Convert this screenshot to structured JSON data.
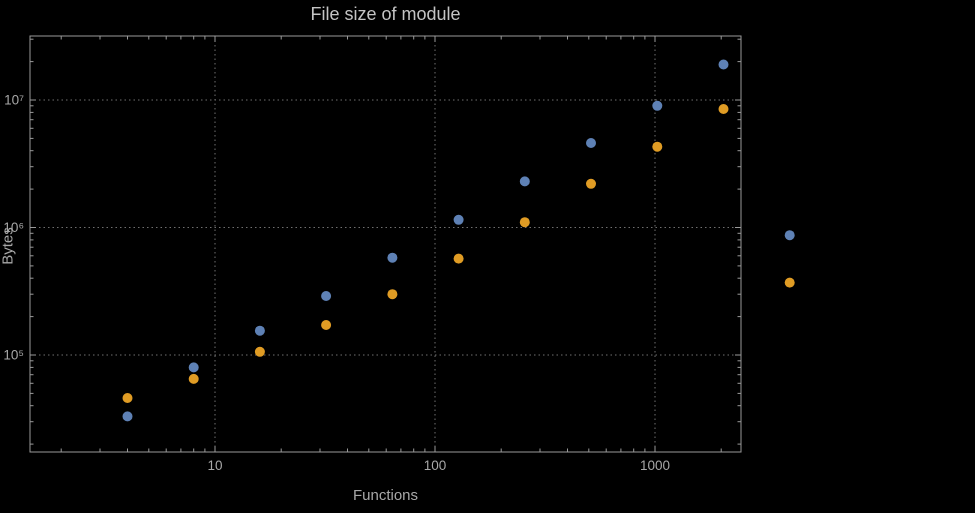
{
  "chart_data": {
    "type": "scatter",
    "title": "File size of module",
    "xlabel": "Functions",
    "ylabel": "Bytes",
    "x_scale": "log",
    "y_scale": "log",
    "xlim": [
      1.5,
      2500
    ],
    "ylim": [
      17500,
      32000000
    ],
    "grid": "dotted",
    "legend": "none",
    "frame": true,
    "background": "#000000",
    "clip_points": false,
    "x_ticks": [
      {
        "value": 10,
        "label": "10"
      },
      {
        "value": 100,
        "label": "100"
      },
      {
        "value": 1000,
        "label": "1000"
      }
    ],
    "y_ticks": [
      {
        "value": 100000,
        "label": "10⁵"
      },
      {
        "value": 1000000,
        "label": "10⁶"
      },
      {
        "value": 10000000,
        "label": "10⁷"
      }
    ],
    "series": [
      {
        "name": "blue",
        "color": "#5e81b5",
        "points": [
          [
            4,
            33000
          ],
          [
            8,
            80000
          ],
          [
            16,
            155000
          ],
          [
            32,
            290000
          ],
          [
            64,
            580000
          ],
          [
            128,
            1150000
          ],
          [
            256,
            2300000
          ],
          [
            512,
            4600000
          ],
          [
            1024,
            9000000
          ],
          [
            2048,
            19000000
          ],
          [
            4096,
            870000
          ]
        ]
      },
      {
        "name": "orange",
        "color": "#e09c24",
        "points": [
          [
            4,
            46000
          ],
          [
            8,
            65000
          ],
          [
            16,
            106000
          ],
          [
            32,
            172000
          ],
          [
            64,
            300000
          ],
          [
            128,
            570000
          ],
          [
            256,
            1100000
          ],
          [
            512,
            2200000
          ],
          [
            1024,
            4300000
          ],
          [
            2048,
            8500000
          ],
          [
            4096,
            370000
          ]
        ]
      }
    ]
  }
}
